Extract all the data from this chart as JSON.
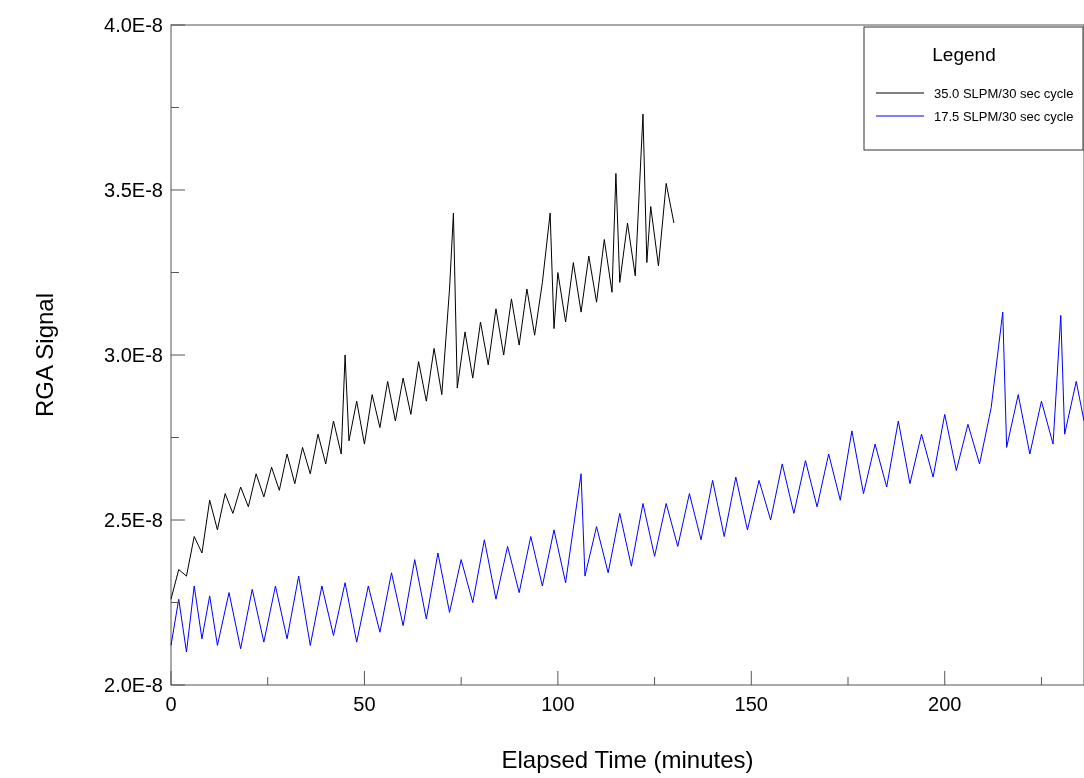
{
  "chart_data": {
    "type": "line",
    "xlabel": "Elapsed Time (minutes)",
    "ylabel": "RGA Signal",
    "legend_title": "Legend",
    "legend": "top right",
    "grid": false,
    "marker": "none",
    "line_style": "solid",
    "xlim": [
      0,
      236
    ],
    "xticks": [
      0,
      {
        "value": 25,
        "label": null
      },
      50,
      {
        "value": 75,
        "label": null
      },
      100,
      {
        "value": 125,
        "label": null
      },
      150,
      {
        "value": 175,
        "label": null
      },
      200,
      {
        "value": 225,
        "label": null
      }
    ],
    "ylim": [
      2e-08,
      4e-08
    ],
    "yticks": [
      {
        "value": 2e-08,
        "label": "2.0E-8"
      },
      {
        "value": 2.25e-08,
        "label": null
      },
      {
        "value": 2.5e-08,
        "label": "2.5E-8"
      },
      {
        "value": 2.75e-08,
        "label": null
      },
      {
        "value": 3e-08,
        "label": "3.0E-8"
      },
      {
        "value": 3.25e-08,
        "label": null
      },
      {
        "value": 3.5e-08,
        "label": "3.5E-8"
      },
      {
        "value": 3.75e-08,
        "label": null
      },
      {
        "value": 4e-08,
        "label": "4.0E-8"
      }
    ],
    "series": [
      {
        "name": "35.0 SLPM/30 sec cycle",
        "color": "#000000",
        "x": [
          0,
          2,
          4,
          6,
          8,
          10,
          12,
          14,
          16,
          18,
          20,
          22,
          24,
          26,
          28,
          30,
          32,
          34,
          36,
          38,
          40,
          42,
          44,
          45,
          46,
          48,
          50,
          52,
          54,
          56,
          58,
          60,
          62,
          64,
          66,
          68,
          70,
          72,
          73,
          74,
          76,
          78,
          80,
          82,
          84,
          86,
          88,
          90,
          92,
          94,
          96,
          98,
          99,
          100,
          102,
          104,
          106,
          108,
          110,
          112,
          114,
          115,
          116,
          118,
          120,
          122,
          123,
          124,
          126,
          128,
          130
        ],
        "values": [
          2.26e-08,
          2.35e-08,
          2.33e-08,
          2.45e-08,
          2.4e-08,
          2.56e-08,
          2.47e-08,
          2.58e-08,
          2.52e-08,
          2.6e-08,
          2.54e-08,
          2.64e-08,
          2.57e-08,
          2.66e-08,
          2.59e-08,
          2.7e-08,
          2.61e-08,
          2.72e-08,
          2.64e-08,
          2.76e-08,
          2.67e-08,
          2.8e-08,
          2.7e-08,
          3e-08,
          2.74e-08,
          2.86e-08,
          2.73e-08,
          2.88e-08,
          2.78e-08,
          2.92e-08,
          2.8e-08,
          2.93e-08,
          2.82e-08,
          2.98e-08,
          2.86e-08,
          3.02e-08,
          2.88e-08,
          3.2e-08,
          3.43e-08,
          2.9e-08,
          3.07e-08,
          2.93e-08,
          3.1e-08,
          2.97e-08,
          3.14e-08,
          3e-08,
          3.17e-08,
          3.03e-08,
          3.2e-08,
          3.06e-08,
          3.22e-08,
          3.43e-08,
          3.08e-08,
          3.25e-08,
          3.1e-08,
          3.28e-08,
          3.13e-08,
          3.3e-08,
          3.16e-08,
          3.35e-08,
          3.19e-08,
          3.55e-08,
          3.22e-08,
          3.4e-08,
          3.24e-08,
          3.73e-08,
          3.28e-08,
          3.45e-08,
          3.27e-08,
          3.52e-08,
          3.4e-08
        ]
      },
      {
        "name": "17.5 SLPM/30 sec cycle",
        "color": "#0000ff",
        "x": [
          0,
          2,
          4,
          6,
          8,
          10,
          12,
          15,
          18,
          21,
          24,
          27,
          30,
          33,
          36,
          39,
          42,
          45,
          48,
          51,
          54,
          57,
          60,
          63,
          66,
          69,
          72,
          75,
          78,
          81,
          84,
          87,
          90,
          93,
          96,
          99,
          102,
          106,
          107,
          110,
          113,
          116,
          119,
          122,
          125,
          128,
          131,
          134,
          137,
          140,
          143,
          146,
          149,
          152,
          155,
          158,
          161,
          164,
          167,
          170,
          173,
          176,
          179,
          182,
          185,
          188,
          191,
          194,
          197,
          200,
          203,
          206,
          209,
          212,
          215,
          216,
          219,
          222,
          225,
          228,
          230,
          231,
          234,
          236
        ],
        "values": [
          2.12e-08,
          2.26e-08,
          2.1e-08,
          2.3e-08,
          2.14e-08,
          2.27e-08,
          2.12e-08,
          2.28e-08,
          2.11e-08,
          2.29e-08,
          2.13e-08,
          2.3e-08,
          2.14e-08,
          2.33e-08,
          2.12e-08,
          2.3e-08,
          2.15e-08,
          2.31e-08,
          2.13e-08,
          2.3e-08,
          2.16e-08,
          2.34e-08,
          2.18e-08,
          2.38e-08,
          2.2e-08,
          2.4e-08,
          2.22e-08,
          2.38e-08,
          2.25e-08,
          2.44e-08,
          2.26e-08,
          2.42e-08,
          2.28e-08,
          2.45e-08,
          2.3e-08,
          2.47e-08,
          2.31e-08,
          2.64e-08,
          2.33e-08,
          2.48e-08,
          2.34e-08,
          2.52e-08,
          2.36e-08,
          2.55e-08,
          2.39e-08,
          2.55e-08,
          2.42e-08,
          2.58e-08,
          2.44e-08,
          2.62e-08,
          2.45e-08,
          2.63e-08,
          2.47e-08,
          2.62e-08,
          2.5e-08,
          2.67e-08,
          2.52e-08,
          2.68e-08,
          2.54e-08,
          2.7e-08,
          2.56e-08,
          2.77e-08,
          2.58e-08,
          2.73e-08,
          2.6e-08,
          2.8e-08,
          2.61e-08,
          2.76e-08,
          2.63e-08,
          2.82e-08,
          2.65e-08,
          2.79e-08,
          2.67e-08,
          2.84e-08,
          3.13e-08,
          2.72e-08,
          2.88e-08,
          2.7e-08,
          2.86e-08,
          2.73e-08,
          3.12e-08,
          2.76e-08,
          2.92e-08,
          2.8e-08
        ]
      }
    ]
  }
}
